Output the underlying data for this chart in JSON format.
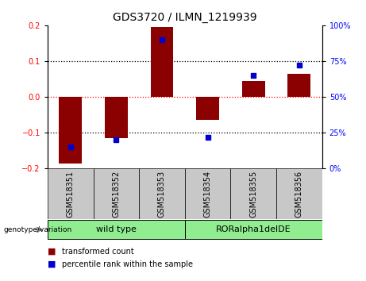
{
  "title": "GDS3720 / ILMN_1219939",
  "samples": [
    "GSM518351",
    "GSM518352",
    "GSM518353",
    "GSM518354",
    "GSM518355",
    "GSM518356"
  ],
  "red_values": [
    -0.185,
    -0.115,
    0.195,
    -0.065,
    0.045,
    0.065
  ],
  "blue_percentiles": [
    15,
    20,
    90,
    22,
    65,
    72
  ],
  "ylim": [
    -0.2,
    0.2
  ],
  "right_ylim": [
    0,
    100
  ],
  "yticks_left": [
    -0.2,
    -0.1,
    0,
    0.1,
    0.2
  ],
  "yticks_right": [
    0,
    25,
    50,
    75,
    100
  ],
  "red_color": "#8B0000",
  "blue_color": "#0000CD",
  "bar_width": 0.5,
  "title_fontsize": 10,
  "tick_fontsize": 7,
  "sample_fontsize": 7,
  "group_label_fontsize": 8,
  "legend_fontsize": 7,
  "group_color": "#90EE90",
  "sample_box_color": "#C8C8C8",
  "wild_type_label": "wild type",
  "ror_label": "RORalpha1delDE",
  "genotype_label": "genotype/variation",
  "legend_red": "transformed count",
  "legend_blue": "percentile rank within the sample"
}
